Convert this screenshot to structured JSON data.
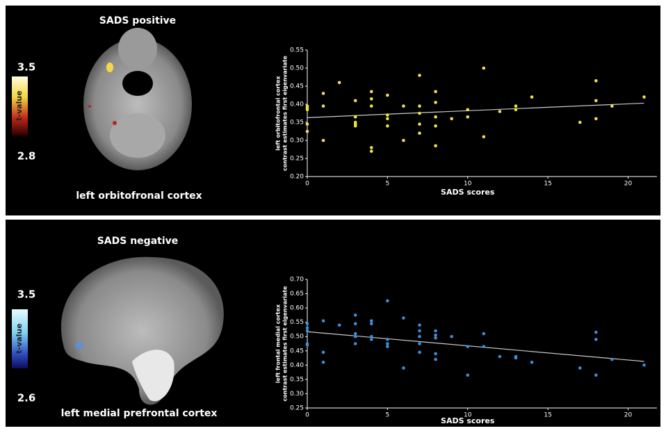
{
  "chart_data": [
    {
      "type": "scatter",
      "title": "SADS positive",
      "region_label": "left orbitofronal cortex",
      "colorbar_max": 3.5,
      "colorbar_min": 2.8,
      "colorbar_label": "t-value",
      "xlabel": "SADS scores",
      "ylabel": [
        "left orbitofrontal cortex",
        "contrast estimates first eigenvariate"
      ],
      "color": "#f2e24a",
      "x": [
        0,
        0,
        0,
        0,
        0,
        1,
        1,
        1,
        2,
        3,
        3,
        3,
        3,
        3,
        4,
        4,
        4,
        4,
        4,
        5,
        5,
        5,
        5,
        6,
        6,
        7,
        7,
        7,
        7,
        7,
        8,
        8,
        8,
        8,
        8,
        9,
        10,
        10,
        11,
        11,
        12,
        13,
        13,
        14,
        17,
        18,
        18,
        18,
        19,
        21
      ],
      "values": [
        0.39,
        0.385,
        0.395,
        0.345,
        0.325,
        0.43,
        0.395,
        0.3,
        0.46,
        0.41,
        0.365,
        0.35,
        0.34,
        0.345,
        0.435,
        0.415,
        0.395,
        0.28,
        0.27,
        0.425,
        0.37,
        0.36,
        0.34,
        0.395,
        0.3,
        0.48,
        0.395,
        0.375,
        0.345,
        0.32,
        0.435,
        0.405,
        0.365,
        0.34,
        0.285,
        0.36,
        0.385,
        0.365,
        0.5,
        0.31,
        0.38,
        0.395,
        0.385,
        0.42,
        0.35,
        0.465,
        0.41,
        0.36,
        0.395,
        0.42
      ],
      "fit": {
        "x": [
          0,
          21
        ],
        "values": [
          0.363,
          0.403
        ],
        "color": "#cccccc"
      },
      "xlim": [
        0,
        21.8
      ],
      "xticks": [
        0,
        5,
        10,
        15,
        20
      ],
      "ylim": [
        0.2,
        0.55
      ],
      "yticks": [
        {
          "value": 0.2,
          "label": "0.20"
        },
        {
          "value": 0.25,
          "label": "0.25"
        },
        {
          "value": 0.3,
          "label": "0.30"
        },
        {
          "value": 0.35,
          "label": "0.35"
        },
        {
          "value": 0.4,
          "label": "0.40"
        },
        {
          "value": 0.45,
          "label": "0.45"
        },
        {
          "value": 0.5,
          "label": "0.50"
        },
        {
          "value": 0.55,
          "label": "0.55"
        }
      ]
    },
    {
      "type": "scatter",
      "title": "SADS negative",
      "region_label": "left medial prefrontal cortex",
      "colorbar_max": 3.5,
      "colorbar_min": 2.6,
      "colorbar_label": "t-value",
      "xlabel": "SADS scores",
      "ylabel": [
        "left frontal medial cortex",
        "contrast estimates first eigenvariate"
      ],
      "color": "#3a8fd8",
      "x": [
        0,
        0,
        0,
        0,
        0,
        1,
        1,
        1,
        2,
        3,
        3,
        3,
        3,
        3,
        4,
        4,
        4,
        4,
        5,
        5,
        5,
        5,
        6,
        6,
        7,
        7,
        7,
        7,
        7,
        8,
        8,
        8,
        8,
        8,
        9,
        10,
        10,
        11,
        11,
        12,
        13,
        13,
        14,
        17,
        18,
        18,
        18,
        19,
        21
      ],
      "values": [
        0.545,
        0.52,
        0.47,
        0.475,
        0.53,
        0.555,
        0.445,
        0.41,
        0.54,
        0.575,
        0.545,
        0.51,
        0.5,
        0.475,
        0.555,
        0.545,
        0.5,
        0.49,
        0.625,
        0.49,
        0.475,
        0.465,
        0.565,
        0.39,
        0.54,
        0.52,
        0.5,
        0.475,
        0.445,
        0.52,
        0.505,
        0.495,
        0.44,
        0.42,
        0.5,
        0.465,
        0.365,
        0.51,
        0.465,
        0.43,
        0.43,
        0.425,
        0.41,
        0.39,
        0.515,
        0.49,
        0.365,
        0.42,
        0.4
      ],
      "fit": {
        "x": [
          0,
          21
        ],
        "values": [
          0.517,
          0.413
        ],
        "color": "#cccccc"
      },
      "xlim": [
        0,
        21.8
      ],
      "xticks": [
        0,
        5,
        10,
        15,
        20
      ],
      "ylim": [
        0.25,
        0.7
      ],
      "yticks": [
        {
          "value": 0.25,
          "label": "0.25"
        },
        {
          "value": 0.3,
          "label": "0.30"
        },
        {
          "value": 0.35,
          "label": "0.35"
        },
        {
          "value": 0.4,
          "label": "0.40"
        },
        {
          "value": 0.45,
          "label": "0.45"
        },
        {
          "value": 0.5,
          "label": "0.50"
        },
        {
          "value": 0.55,
          "label": "0.55"
        },
        {
          "value": 0.6,
          "label": "0.60"
        },
        {
          "value": 0.65,
          "label": "0.65"
        },
        {
          "value": 0.7,
          "label": "0.70"
        }
      ]
    }
  ]
}
